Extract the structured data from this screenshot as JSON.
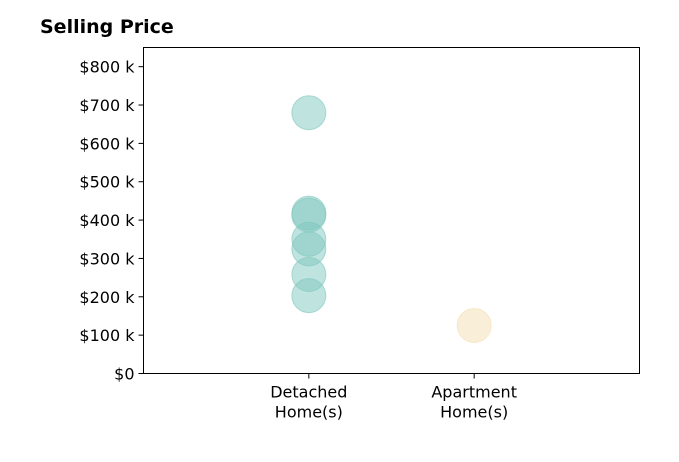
{
  "chart_data": {
    "type": "scatter",
    "title": "Selling Price",
    "xlabel": "",
    "ylabel": "",
    "categories": [
      "Detached\nHome(s)",
      "Apartment\nHome(s)"
    ],
    "category_range": [
      0,
      3
    ],
    "ylim": [
      0,
      850
    ],
    "y_ticks": [
      0,
      100,
      200,
      300,
      400,
      500,
      600,
      700,
      800
    ],
    "y_tick_labels": [
      "$0",
      "$100 k",
      "$200 k",
      "$300 k",
      "$400 k",
      "$500 k",
      "$600 k",
      "$700 k",
      "$800 k"
    ],
    "grid": false,
    "legend": "none",
    "series": [
      {
        "category": "Detached\nHome(s)",
        "color": "#7fc7be",
        "values": [
          680,
          418,
          413,
          350,
          325,
          258,
          203
        ]
      },
      {
        "category": "Apartment\nHome(s)",
        "color": "#f3ddb0",
        "values": [
          125
        ]
      }
    ]
  }
}
